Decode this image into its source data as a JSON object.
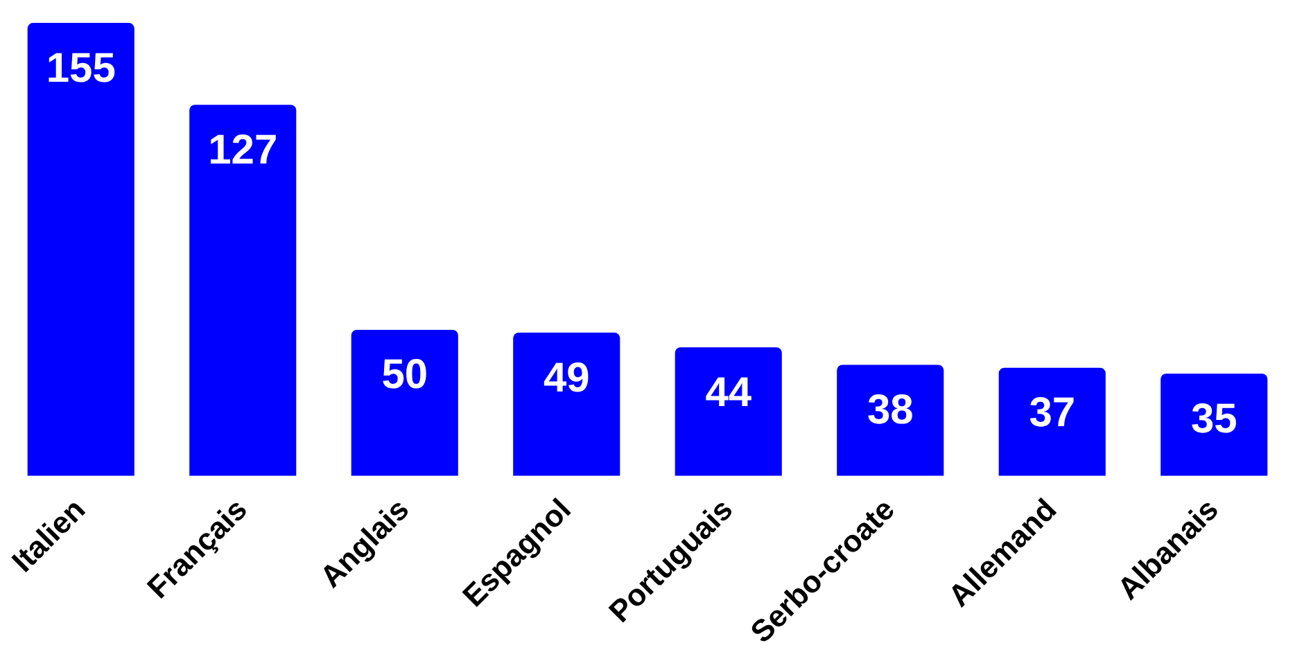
{
  "chart_data": {
    "type": "bar",
    "categories": [
      "Italien",
      "Français",
      "Anglais",
      "Espagnol",
      "Portuguais",
      "Serbo-croate",
      "Allemand",
      "Albanais"
    ],
    "values": [
      155,
      127,
      50,
      49,
      44,
      38,
      37,
      35
    ],
    "color": "#0000ff",
    "data_labels": true
  }
}
